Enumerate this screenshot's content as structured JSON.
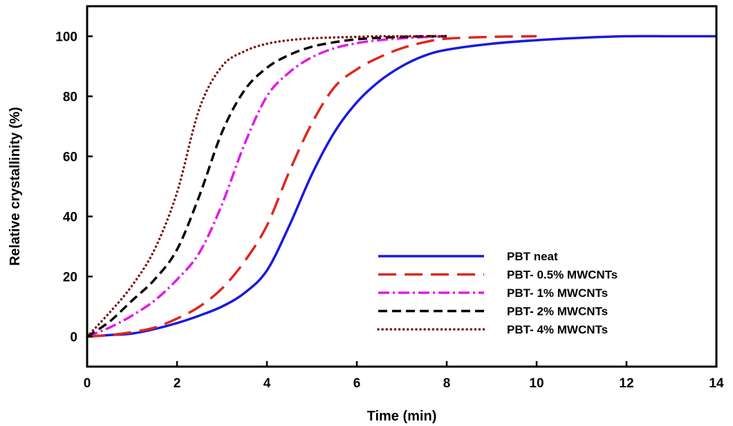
{
  "chart_data": {
    "type": "line",
    "title": "",
    "xlabel": "Time (min)",
    "ylabel": "Relative crystallinity (%)",
    "xlim": [
      0,
      14
    ],
    "ylim": [
      -10,
      110
    ],
    "xticks": [
      0,
      2,
      4,
      6,
      8,
      10,
      12,
      14
    ],
    "yticks": [
      0,
      20,
      40,
      60,
      80,
      100
    ],
    "grid": false,
    "legend_position": "lower-right",
    "series": [
      {
        "name": "PBT neat",
        "color": "#1a1adf",
        "style": "solid",
        "x": [
          0,
          0.5,
          1,
          1.5,
          2,
          2.5,
          3,
          3.5,
          4,
          4.5,
          5,
          5.5,
          6,
          6.5,
          7,
          7.5,
          8,
          9,
          10,
          11,
          12,
          13,
          14
        ],
        "y": [
          0,
          0.5,
          1,
          2.5,
          4.5,
          7,
          10,
          14.5,
          22,
          37,
          54,
          68,
          78,
          85,
          90,
          93.5,
          95.5,
          97.5,
          98.7,
          99.5,
          100,
          100,
          100
        ]
      },
      {
        "name": "PBT- 0.5% MWCNTs",
        "color": "#e0261c",
        "style": "long-dash",
        "x": [
          0,
          0.5,
          1,
          1.5,
          2,
          2.5,
          3,
          3.5,
          4,
          4.5,
          5,
          5.5,
          6,
          6.5,
          7,
          7.5,
          8,
          9,
          10
        ],
        "y": [
          0,
          0.5,
          1.5,
          3,
          6,
          10,
          16,
          25,
          37,
          55,
          71,
          83,
          89,
          93,
          96,
          98,
          99.2,
          99.8,
          100
        ]
      },
      {
        "name": "PBT- 1% MWCNTs",
        "color": "#e21be6",
        "style": "dash-dot",
        "x": [
          0,
          0.5,
          1,
          1.5,
          2,
          2.5,
          3,
          3.5,
          4,
          4.5,
          5,
          5.5,
          6,
          6.5,
          7,
          7.5,
          8
        ],
        "y": [
          0,
          3,
          7,
          12,
          19,
          28,
          44,
          64,
          80,
          88,
          93,
          96,
          97.7,
          98.7,
          99.3,
          99.7,
          100
        ]
      },
      {
        "name": "PBT- 2% MWCNTs",
        "color": "#000000",
        "style": "short-dash",
        "x": [
          0,
          0.5,
          1,
          1.5,
          2,
          2.5,
          3,
          3.5,
          4,
          4.5,
          5,
          5.5,
          6,
          6.5,
          7,
          7.5,
          8
        ],
        "y": [
          0,
          5,
          12,
          19,
          29,
          47,
          68,
          82,
          89.5,
          93.8,
          96.5,
          98,
          99,
          99.5,
          99.8,
          100,
          100
        ]
      },
      {
        "name": "PBT- 4% MWCNTs",
        "color": "#7b1212",
        "style": "dotted",
        "x": [
          0,
          0.5,
          1,
          1.5,
          2,
          2.5,
          3,
          3.5,
          4,
          4.5,
          5,
          5.5,
          6,
          6.5,
          7,
          7.5,
          8
        ],
        "y": [
          0,
          8,
          17,
          29,
          48,
          76,
          90,
          95,
          97.5,
          98.7,
          99.3,
          99.6,
          99.8,
          100,
          100,
          100,
          100
        ]
      }
    ]
  }
}
